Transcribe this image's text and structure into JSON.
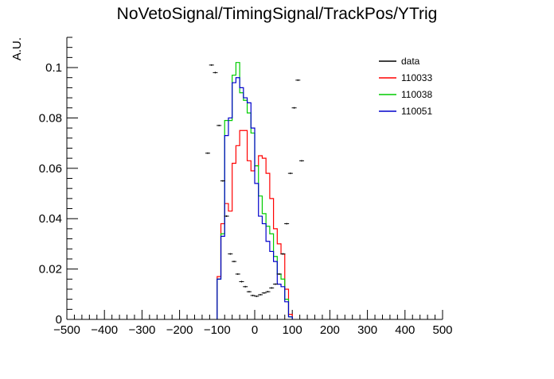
{
  "chart_data": {
    "type": "line",
    "title": "NoVetoSignal/TimingSignal/TrackPos/YTrig",
    "xlabel": "",
    "ylabel": "A.U.",
    "xlim": [
      -500,
      500
    ],
    "ylim": [
      0,
      0.112
    ],
    "grid": false,
    "legend_position": "top-right",
    "x_ticks": [
      "−500",
      "−400",
      "−300",
      "−200",
      "−100",
      "0",
      "100",
      "200",
      "300",
      "400",
      "500"
    ],
    "y_ticks": [
      "0",
      "0.02",
      "0.04",
      "0.06",
      "0.08",
      "0.1"
    ],
    "bin_width": 10,
    "bin_left_edges": [
      -100,
      -90,
      -80,
      -70,
      -60,
      -50,
      -40,
      -30,
      -20,
      -10,
      0,
      10,
      20,
      30,
      40,
      50,
      60,
      70,
      80,
      90
    ],
    "series": [
      {
        "name": "data",
        "color": "#000000",
        "style": "points",
        "x": [
          -125,
          -115,
          -105,
          -95,
          -85,
          -75,
          -65,
          -55,
          -45,
          -35,
          -25,
          -15,
          -5,
          5,
          15,
          25,
          35,
          45,
          55,
          65,
          75,
          85,
          95,
          105,
          115,
          125
        ],
        "y": [
          0.066,
          0.101,
          0.098,
          0.077,
          0.055,
          0.041,
          0.026,
          0.023,
          0.018,
          0.015,
          0.013,
          0.011,
          0.0095,
          0.0092,
          0.0098,
          0.0105,
          0.011,
          0.0125,
          0.014,
          0.018,
          0.026,
          0.038,
          0.058,
          0.084,
          0.095,
          0.063
        ]
      },
      {
        "name": "110033",
        "color": "#ff0000",
        "style": "step",
        "values": [
          0.017,
          0.038,
          0.046,
          0.043,
          0.062,
          0.069,
          0.075,
          0.075,
          0.063,
          0.059,
          0.061,
          0.065,
          0.064,
          0.058,
          0.048,
          0.036,
          0.03,
          0.026,
          0.012,
          0.002
        ]
      },
      {
        "name": "110038",
        "color": "#00cc00",
        "style": "step",
        "values": [
          0.016,
          0.034,
          0.079,
          0.079,
          0.097,
          0.102,
          0.09,
          0.087,
          0.082,
          0.074,
          0.061,
          0.049,
          0.042,
          0.037,
          0.034,
          0.025,
          0.018,
          0.016,
          0.008,
          0.001
        ]
      },
      {
        "name": "110051",
        "color": "#0000cc",
        "style": "step",
        "values": [
          0.016,
          0.033,
          0.073,
          0.08,
          0.094,
          0.096,
          0.092,
          0.088,
          0.086,
          0.076,
          0.054,
          0.041,
          0.038,
          0.031,
          0.027,
          0.023,
          0.014,
          0.013,
          0.007,
          0.001
        ]
      }
    ]
  }
}
